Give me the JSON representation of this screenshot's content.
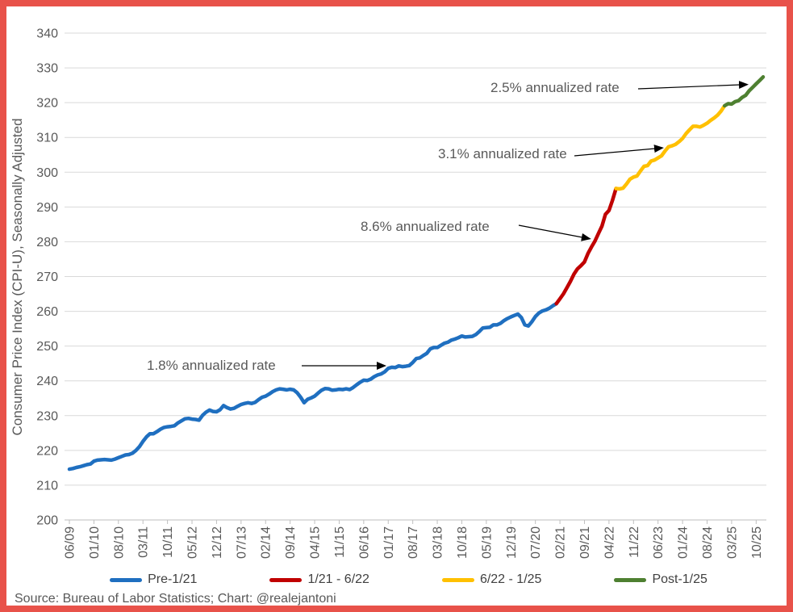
{
  "page": {
    "border_color": "#E8524A",
    "background": "#FFFFFF"
  },
  "chart_data": {
    "type": "line",
    "title": "",
    "ylabel": "Consumer Price Index (CPI-U), Seasonally Adjusted",
    "xlabel": "",
    "grid": "horizontal",
    "legend_position": "bottom",
    "y_axis": {
      "min": 200,
      "max": 340,
      "step": 10,
      "ticks": [
        200,
        210,
        220,
        230,
        240,
        250,
        260,
        270,
        280,
        290,
        300,
        310,
        320,
        330,
        340
      ]
    },
    "x_axis": {
      "months_per_tick": 7,
      "first_month": "06/09",
      "last_month_plotted": "12/25",
      "tick_labels": [
        "06/09",
        "01/10",
        "08/10",
        "03/11",
        "10/11",
        "05/12",
        "12/12",
        "07/13",
        "02/14",
        "09/14",
        "04/15",
        "11/15",
        "06/16",
        "01/17",
        "08/17",
        "03/18",
        "10/18",
        "05/19",
        "12/19",
        "07/20",
        "02/21",
        "09/21",
        "04/22",
        "11/22",
        "06/23",
        "01/24",
        "08/24",
        "03/25",
        "10/25"
      ]
    },
    "series": [
      {
        "name": "Pre-1/21",
        "color": "#1F6FC0",
        "start": 0,
        "end": 139
      },
      {
        "name": "1/21 - 6/22",
        "color": "#C00000",
        "start": 139,
        "end": 156
      },
      {
        "name": "6/22 - 1/25",
        "color": "#FFC000",
        "start": 156,
        "end": 187
      },
      {
        "name": "Post-1/25",
        "color": "#4E8031",
        "start": 187,
        "end": 198
      }
    ],
    "values": [
      214.6,
      214.8,
      215.1,
      215.3,
      215.6,
      215.9,
      216.1,
      216.9,
      217.2,
      217.3,
      217.4,
      217.3,
      217.2,
      217.5,
      217.9,
      218.3,
      218.7,
      218.8,
      219.2,
      220.0,
      221.1,
      222.6,
      223.9,
      224.8,
      224.8,
      225.4,
      226.1,
      226.6,
      226.8,
      226.9,
      227.1,
      227.9,
      228.5,
      229.1,
      229.2,
      229.0,
      228.9,
      228.7,
      230.1,
      231.0,
      231.6,
      231.2,
      231.1,
      231.7,
      232.9,
      232.3,
      231.9,
      232.1,
      232.7,
      233.2,
      233.5,
      233.7,
      233.5,
      233.8,
      234.6,
      235.3,
      235.6,
      236.2,
      236.9,
      237.4,
      237.7,
      237.6,
      237.4,
      237.6,
      237.4,
      236.6,
      235.3,
      233.7,
      234.7,
      235.1,
      235.6,
      236.5,
      237.3,
      237.8,
      237.7,
      237.3,
      237.4,
      237.6,
      237.5,
      237.7,
      237.5,
      238.1,
      238.9,
      239.6,
      240.2,
      240.1,
      240.5,
      241.2,
      241.7,
      242.0,
      242.6,
      243.6,
      243.9,
      243.8,
      244.3,
      244.1,
      244.2,
      244.4,
      245.3,
      246.4,
      246.6,
      247.3,
      247.9,
      249.2,
      249.6,
      249.6,
      250.2,
      250.8,
      251.1,
      251.7,
      252.0,
      252.4,
      252.9,
      252.6,
      252.7,
      252.8,
      253.3,
      254.2,
      255.2,
      255.3,
      255.4,
      256.1,
      256.1,
      256.5,
      257.3,
      257.9,
      258.4,
      258.8,
      259.2,
      258.2,
      256.1,
      255.8,
      257.0,
      258.5,
      259.5,
      260.1,
      260.4,
      260.9,
      261.6,
      262.2,
      263.6,
      265.0,
      266.8,
      268.6,
      270.7,
      272.2,
      273.1,
      274.2,
      276.6,
      278.5,
      280.2,
      282.4,
      284.5,
      287.9,
      289.0,
      291.9,
      295.3,
      295.2,
      295.4,
      296.6,
      298.0,
      298.6,
      298.9,
      300.4,
      301.7,
      301.9,
      303.2,
      303.5,
      304.1,
      304.7,
      306.1,
      307.3,
      307.6,
      308.0,
      308.8,
      309.7,
      311.1,
      312.2,
      313.2,
      313.2,
      313.0,
      313.5,
      314.1,
      314.9,
      315.6,
      316.4,
      317.6,
      319.1,
      319.7,
      319.6,
      320.3,
      320.6,
      321.5,
      322.1,
      323.4,
      324.4,
      325.4,
      326.4,
      327.4
    ],
    "annotations": [
      {
        "text": "1.8% annualized rate",
        "applies_to": "Pre-1/21"
      },
      {
        "text": "8.6% annualized rate",
        "applies_to": "1/21 - 6/22"
      },
      {
        "text": "3.1% annualized rate",
        "applies_to": "6/22 - 1/25"
      },
      {
        "text": "2.5% annualized rate",
        "applies_to": "Post-1/25"
      }
    ]
  },
  "footer": {
    "source_text": "Source: Bureau of Labor Statistics; Chart: @realejantoni"
  }
}
